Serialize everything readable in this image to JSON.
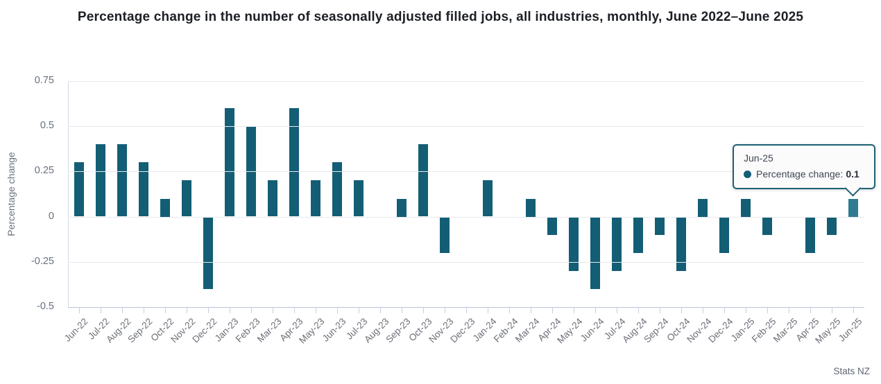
{
  "title": "Percentage change in the number of seasonally adjusted filled jobs, all industries, monthly, June 2022–June 2025",
  "source": "Stats NZ",
  "chart_data": {
    "type": "bar",
    "title": "Percentage change in the number of seasonally adjusted filled jobs, all industries, monthly, June 2022–June 2025",
    "xlabel": "",
    "ylabel": "Percentage change",
    "ylim": [
      -0.5,
      0.75
    ],
    "yticks": [
      0.75,
      0.5,
      0.25,
      0,
      -0.25,
      -0.5
    ],
    "ytick_labels": [
      "0.75",
      "0.5",
      "0.25",
      "0",
      "-0.25",
      "-0.5"
    ],
    "grid": true,
    "legend": "none",
    "categories": [
      "Jun-22",
      "Jul-22",
      "Aug-22",
      "Sep-22",
      "Oct-22",
      "Nov-22",
      "Dec-22",
      "Jan-23",
      "Feb-23",
      "Mar-23",
      "Apr-23",
      "May-23",
      "Jun-23",
      "Jul-23",
      "Aug-23",
      "Sep-23",
      "Oct-23",
      "Nov-23",
      "Dec-23",
      "Jan-24",
      "Feb-24",
      "Mar-24",
      "Apr-24",
      "May-24",
      "Jun-24",
      "Jul-24",
      "Aug-24",
      "Sep-24",
      "Oct-24",
      "Nov-24",
      "Dec-24",
      "Jan-25",
      "Feb-25",
      "Mar-25",
      "Apr-25",
      "May-25",
      "Jun-25"
    ],
    "values": [
      0.3,
      0.4,
      0.4,
      0.3,
      0.1,
      0.2,
      -0.4,
      0.6,
      0.5,
      0.2,
      0.6,
      0.2,
      0.3,
      0.2,
      0,
      0.1,
      0.4,
      -0.2,
      0,
      0.2,
      0,
      0.1,
      -0.1,
      -0.3,
      -0.4,
      -0.3,
      -0.2,
      -0.1,
      -0.3,
      0.1,
      -0.2,
      0.1,
      -0.1,
      0,
      -0.2,
      -0.1,
      0.1
    ],
    "series_name": "Percentage change",
    "highlighted_index": 36,
    "colors": {
      "bar": "#135e75",
      "bar_highlighted": "#2e7c90",
      "gridline": "#e9e9ec",
      "axis_bottom": "#b9c3d7",
      "axis_left": "#d3d9e6",
      "tick": "#c5cee1"
    }
  },
  "tooltip": {
    "category": "Jun-25",
    "series_label": "Percentage change:",
    "value": "0.1",
    "dot_color": "#135e75"
  }
}
